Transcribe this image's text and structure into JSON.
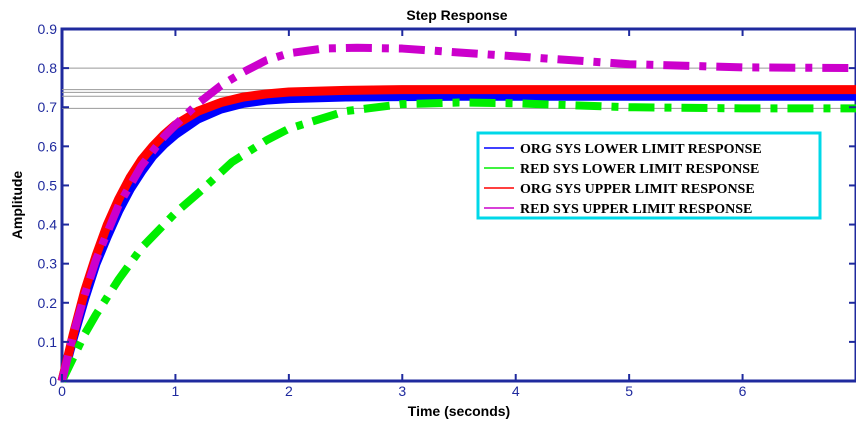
{
  "chart_data": {
    "type": "line",
    "title": "Step Response",
    "xlabel": "Time (seconds)",
    "ylabel": "Amplitude",
    "xlim": [
      0,
      7
    ],
    "ylim": [
      0,
      0.9
    ],
    "x_ticks": [
      "0",
      "1",
      "2",
      "3",
      "4",
      "5",
      "6"
    ],
    "y_ticks": [
      "0",
      "0.1",
      "0.2",
      "0.3",
      "0.4",
      "0.5",
      "0.6",
      "0.7",
      "0.8",
      "0.9"
    ],
    "legend_position": "right",
    "reference_lines_y": [
      0.697,
      0.728,
      0.738,
      0.745,
      0.8
    ],
    "series": [
      {
        "name": "ORG SYS LOWER LIMIT RESPONSE",
        "color": "#0000ff",
        "style": "solid-thick",
        "x": [
          0,
          0.1,
          0.2,
          0.3,
          0.4,
          0.5,
          0.6,
          0.7,
          0.8,
          0.9,
          1.0,
          1.2,
          1.4,
          1.6,
          1.8,
          2.0,
          2.5,
          3.0,
          3.5,
          4,
          5,
          6,
          7
        ],
        "y": [
          0,
          0.11,
          0.21,
          0.3,
          0.37,
          0.435,
          0.49,
          0.535,
          0.575,
          0.605,
          0.63,
          0.67,
          0.695,
          0.71,
          0.718,
          0.722,
          0.726,
          0.727,
          0.728,
          0.728,
          0.728,
          0.728,
          0.728
        ]
      },
      {
        "name": "RED SYS LOWER LIMIT RESPONSE",
        "color": "#00ee00",
        "style": "dashdot",
        "x": [
          0,
          0.1,
          0.2,
          0.3,
          0.5,
          0.7,
          1.0,
          1.2,
          1.5,
          1.8,
          2.0,
          2.5,
          3.0,
          3.5,
          4,
          4.5,
          5,
          6,
          7
        ],
        "y": [
          0,
          0.06,
          0.12,
          0.17,
          0.26,
          0.34,
          0.43,
          0.48,
          0.56,
          0.615,
          0.645,
          0.69,
          0.708,
          0.712,
          0.71,
          0.705,
          0.7,
          0.697,
          0.697
        ]
      },
      {
        "name": "ORG SYS UPPER LIMIT RESPONSE",
        "color": "#ff0000",
        "style": "solid-thick",
        "x": [
          0,
          0.1,
          0.2,
          0.3,
          0.4,
          0.5,
          0.6,
          0.7,
          0.8,
          0.9,
          1.0,
          1.2,
          1.4,
          1.6,
          1.8,
          2.0,
          2.5,
          3.0,
          3.5,
          4,
          5,
          6,
          7
        ],
        "y": [
          0,
          0.12,
          0.23,
          0.32,
          0.4,
          0.465,
          0.52,
          0.565,
          0.6,
          0.63,
          0.655,
          0.69,
          0.712,
          0.726,
          0.734,
          0.739,
          0.743,
          0.745,
          0.745,
          0.745,
          0.745,
          0.745,
          0.745
        ]
      },
      {
        "name": "RED SYS UPPER LIMIT RESPONSE",
        "color": "#cc00cc",
        "style": "dashdot",
        "x": [
          0,
          0.1,
          0.2,
          0.3,
          0.5,
          0.7,
          0.9,
          1.0,
          1.2,
          1.4,
          1.6,
          1.8,
          2.0,
          2.3,
          2.6,
          3.0,
          3.5,
          4.0,
          4.5,
          5.0,
          6,
          7
        ],
        "y": [
          0,
          0.12,
          0.22,
          0.31,
          0.45,
          0.55,
          0.625,
          0.655,
          0.71,
          0.755,
          0.79,
          0.82,
          0.838,
          0.85,
          0.852,
          0.85,
          0.84,
          0.83,
          0.82,
          0.81,
          0.802,
          0.8
        ]
      }
    ]
  }
}
